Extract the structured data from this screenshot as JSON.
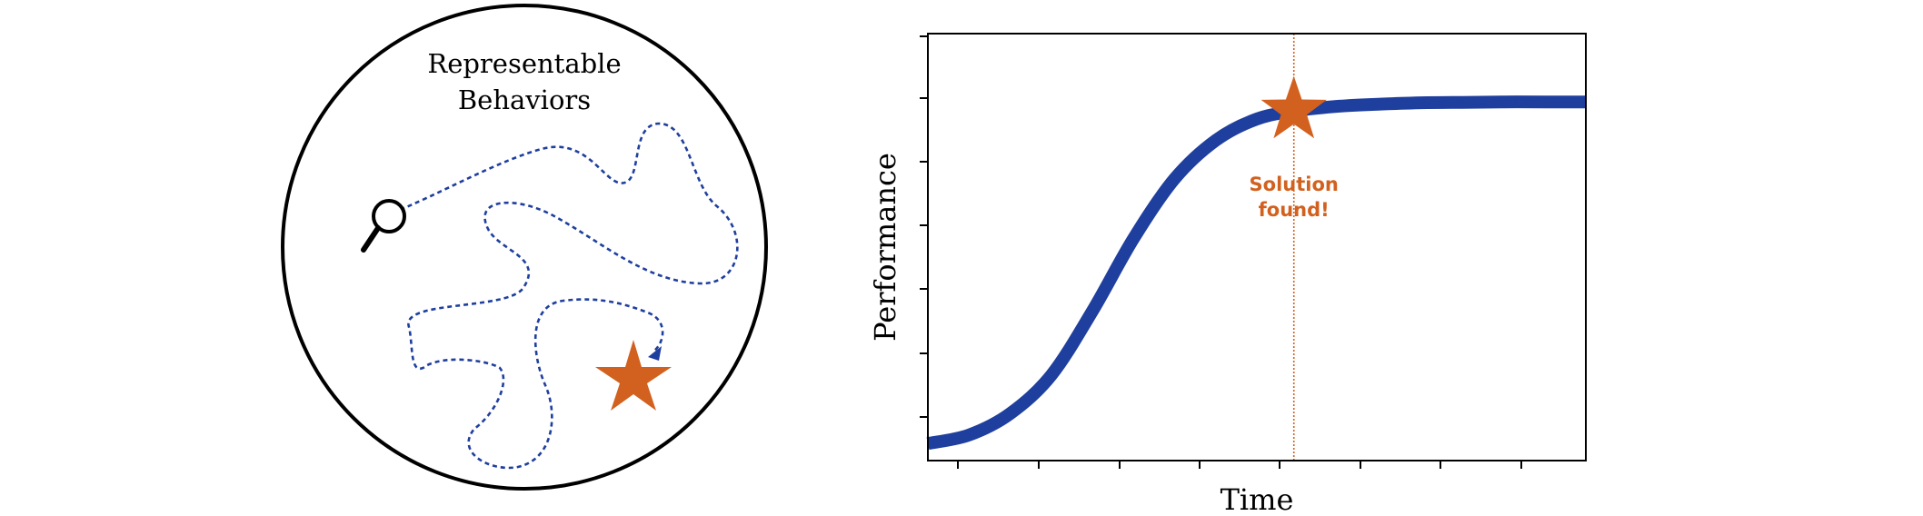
{
  "left_diagram": {
    "title_line1": "Representable",
    "title_line2": "Behaviors",
    "icons": {
      "search": "magnifier-icon",
      "goal": "star-icon"
    }
  },
  "right_chart": {
    "annotation_line1": "Solution",
    "annotation_line2": "found!",
    "icons": {
      "marker": "star-icon"
    }
  },
  "colors": {
    "blue": "#1f3f9e",
    "orange": "#d2611f",
    "black": "#000000"
  },
  "chart_data": {
    "type": "line",
    "xlabel": "Time",
    "ylabel": "Performance",
    "x_tick_labels": [],
    "y_tick_labels": [],
    "series": [
      {
        "x": [
          0,
          0.5,
          1,
          1.5,
          2,
          2.5,
          3,
          3.5,
          4,
          4.5,
          5,
          5.5,
          6,
          6.5,
          7,
          7.5,
          8
        ],
        "values": [
          0.04,
          0.06,
          0.11,
          0.2,
          0.35,
          0.52,
          0.66,
          0.75,
          0.8,
          0.82,
          0.83,
          0.835,
          0.838,
          0.839,
          0.84,
          0.84,
          0.84
        ]
      }
    ],
    "marker": {
      "x": 4.45,
      "y": 0.82,
      "shape": "star"
    },
    "vline_x": 4.45,
    "xlim": [
      0,
      8
    ],
    "ylim": [
      0,
      1
    ],
    "grid": false
  }
}
